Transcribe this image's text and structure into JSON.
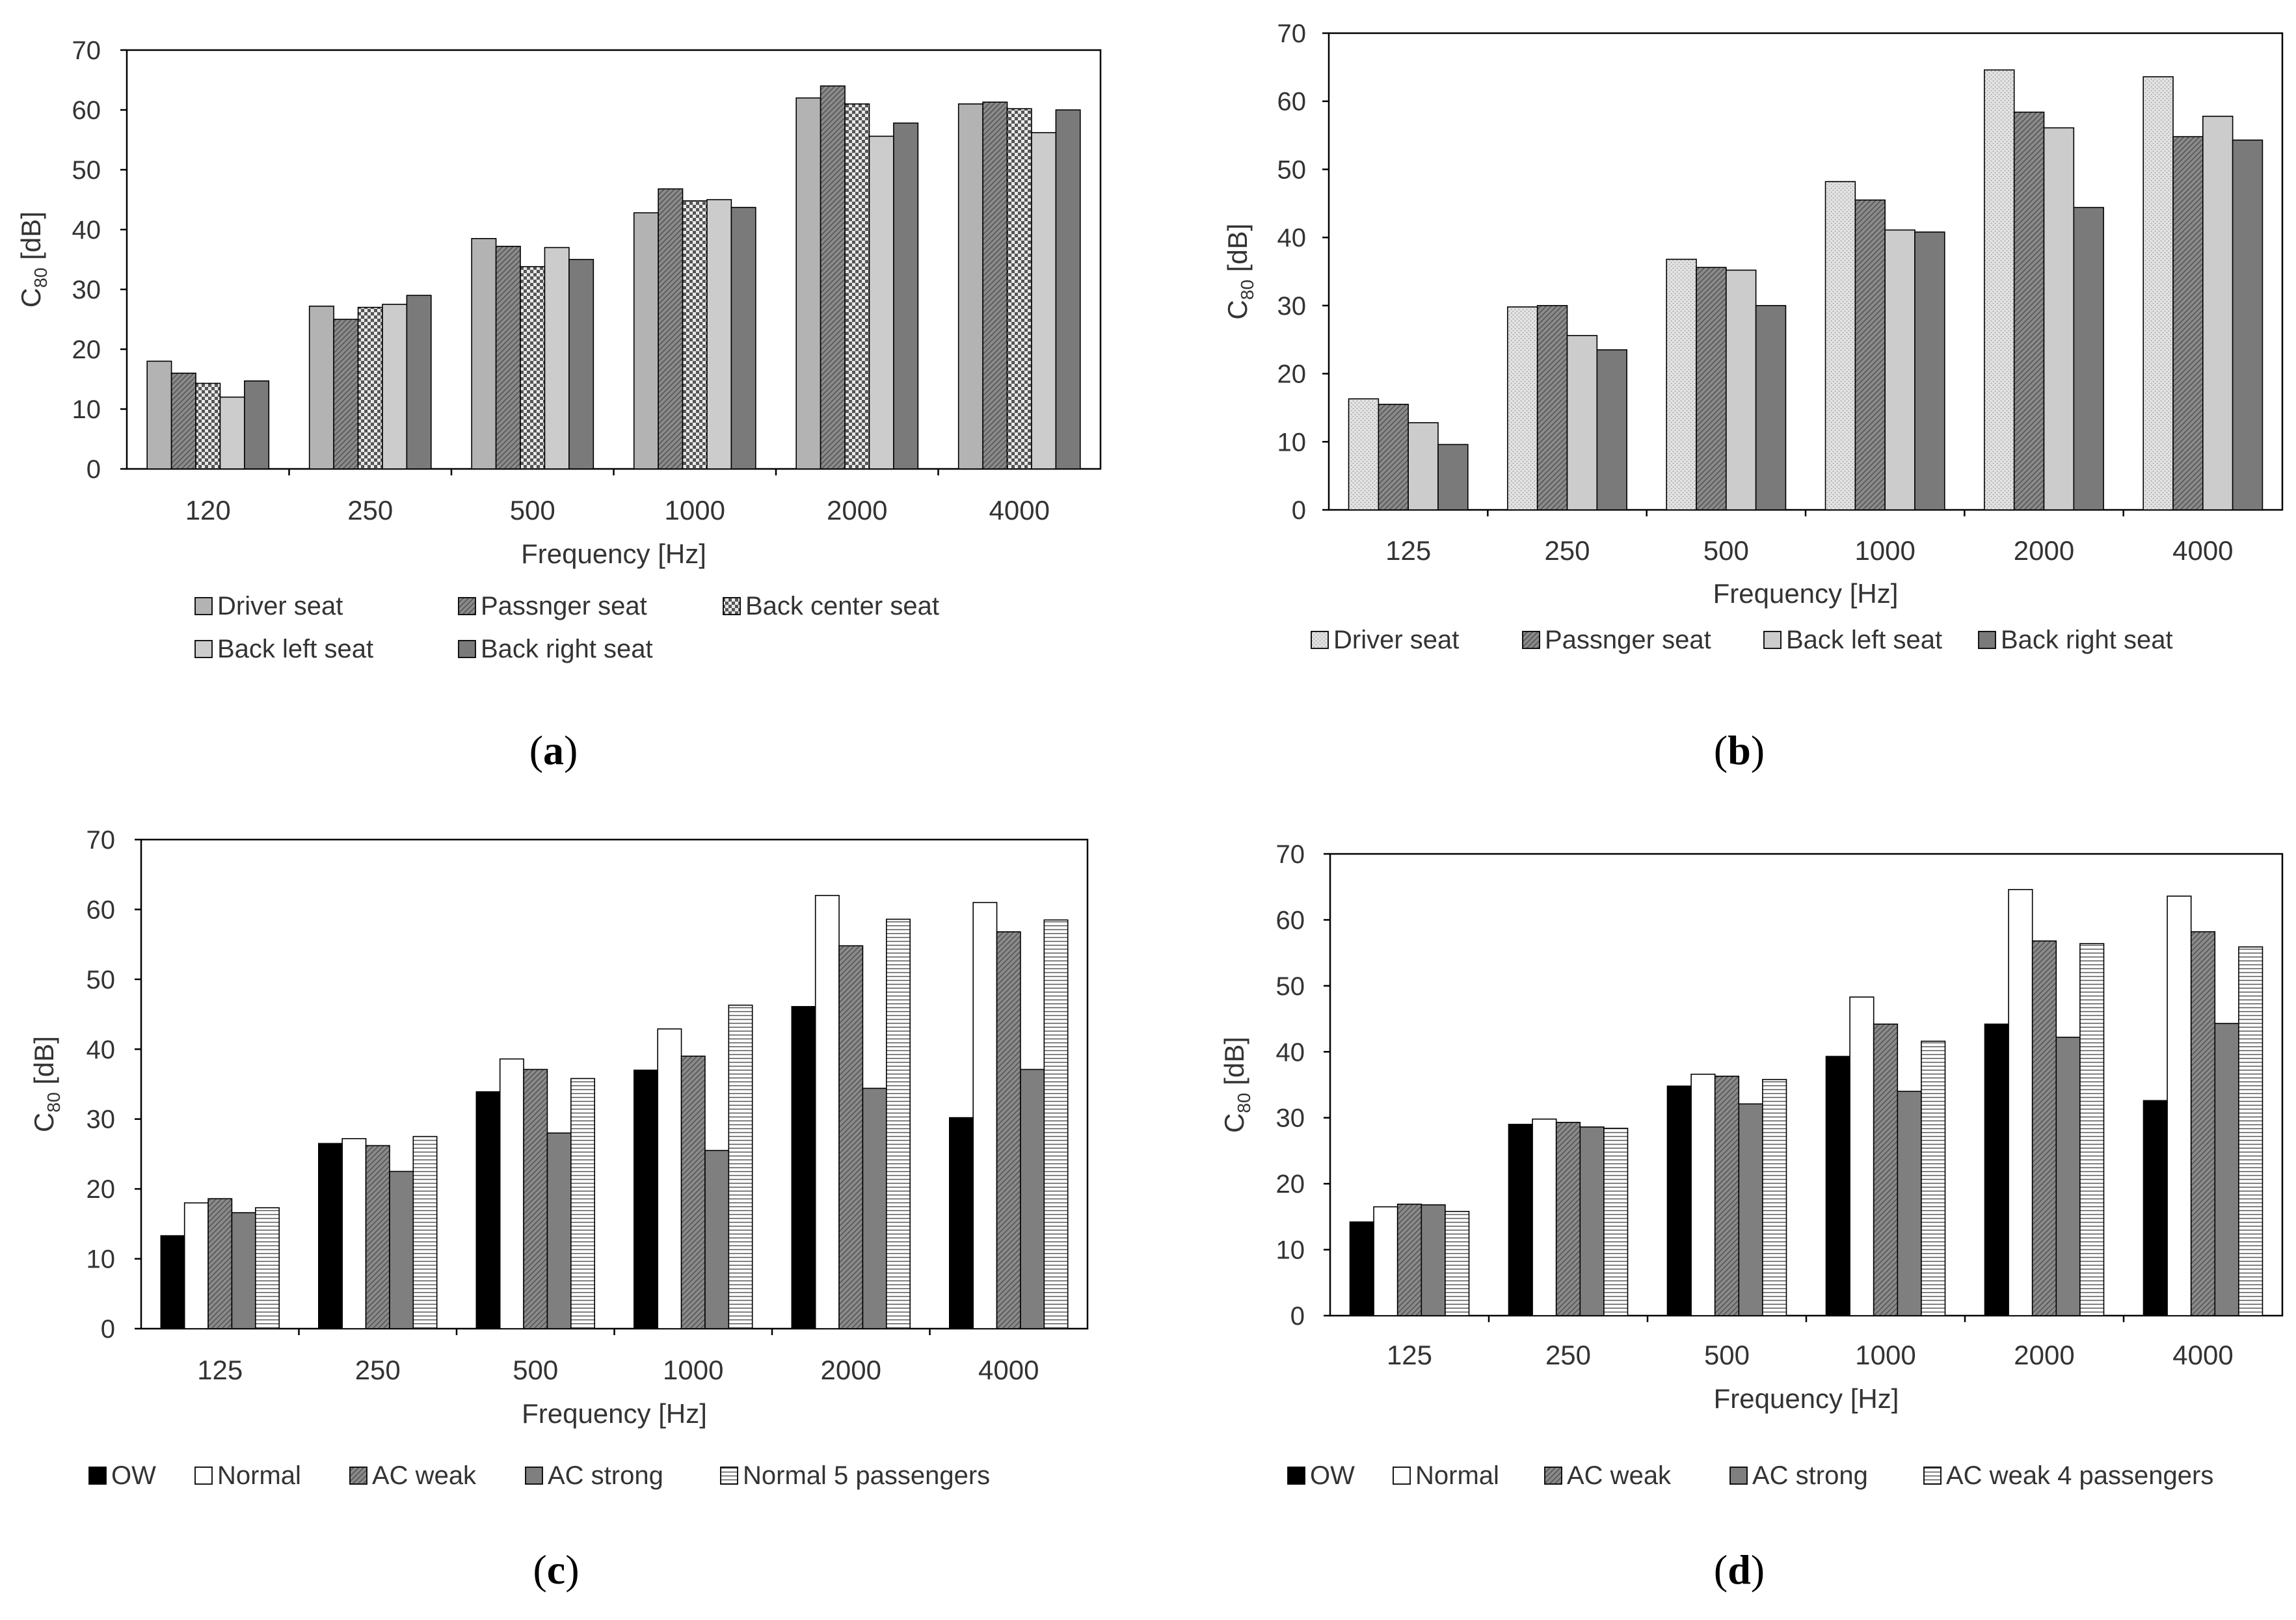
{
  "chart_data": [
    {
      "id": "a",
      "type": "bar",
      "caption_letter": "a",
      "categories": [
        "120",
        "250",
        "500",
        "1000",
        "2000",
        "4000"
      ],
      "xlabel": "Frequency [Hz]",
      "ylabel_main": "C",
      "ylabel_sub": "80",
      "ylabel_unit": " [dB]",
      "ylim": [
        0,
        70
      ],
      "yticks": [
        "0",
        "10",
        "20",
        "30",
        "40",
        "50",
        "60",
        "70"
      ],
      "legend_position": "bottom",
      "series": [
        {
          "name": "Driver seat",
          "values": [
            18,
            27.2,
            38.5,
            42.8,
            62,
            61
          ],
          "fill": "#b3b3b3",
          "pattern": "solid"
        },
        {
          "name": "Passnger seat",
          "values": [
            16,
            25,
            37.2,
            46.8,
            64,
            61.3
          ],
          "fill": "#7f7f7f",
          "pattern": "hatch"
        },
        {
          "name": "Back center seat",
          "values": [
            14.3,
            27,
            33.8,
            44.8,
            61,
            60.2
          ],
          "fill": "#cfcfcf",
          "pattern": "check"
        },
        {
          "name": "Back left seat",
          "values": [
            12,
            27.5,
            37,
            45,
            55.6,
            56.2
          ],
          "fill": "#cccccc",
          "pattern": "solid"
        },
        {
          "name": "Back right seat",
          "values": [
            14.7,
            29,
            35,
            43.7,
            57.8,
            60
          ],
          "fill": "#7a7a7a",
          "pattern": "solid"
        }
      ]
    },
    {
      "id": "b",
      "type": "bar",
      "caption_letter": "b",
      "categories": [
        "125",
        "250",
        "500",
        "1000",
        "2000",
        "4000"
      ],
      "xlabel": "Frequency [Hz]",
      "ylabel_main": "C",
      "ylabel_sub": "80",
      "ylabel_unit": " [dB]",
      "ylim": [
        0,
        70
      ],
      "yticks": [
        "0",
        "10",
        "20",
        "30",
        "40",
        "50",
        "60",
        "70"
      ],
      "legend_position": "bottom",
      "series": [
        {
          "name": "Driver seat",
          "values": [
            16.3,
            29.8,
            36.8,
            48.2,
            64.6,
            63.6
          ],
          "fill": "#d8d8d8",
          "pattern": "dots"
        },
        {
          "name": "Passnger seat",
          "values": [
            15.5,
            30,
            35.6,
            45.5,
            58.4,
            54.8
          ],
          "fill": "#7f7f7f",
          "pattern": "hatch"
        },
        {
          "name": "Back left seat",
          "values": [
            12.8,
            25.6,
            35.2,
            41.1,
            56.1,
            57.8
          ],
          "fill": "#cccccc",
          "pattern": "solid"
        },
        {
          "name": "Back right seat",
          "values": [
            9.6,
            23.5,
            30,
            40.8,
            44.4,
            54.3
          ],
          "fill": "#7a7a7a",
          "pattern": "solid"
        }
      ]
    },
    {
      "id": "c",
      "type": "bar",
      "caption_letter": "c",
      "categories": [
        "125",
        "250",
        "500",
        "1000",
        "2000",
        "4000"
      ],
      "xlabel": "Frequency [Hz]",
      "ylabel_main": "C",
      "ylabel_sub": "80",
      "ylabel_unit": " [dB]",
      "ylim": [
        0,
        70
      ],
      "yticks": [
        "0",
        "10",
        "20",
        "30",
        "40",
        "50",
        "60",
        "70"
      ],
      "legend_position": "bottom",
      "series": [
        {
          "name": "OW",
          "values": [
            13.3,
            26.5,
            33.9,
            37,
            46.1,
            30.2
          ],
          "fill": "#000000",
          "pattern": "solid"
        },
        {
          "name": "Normal",
          "values": [
            18,
            27.2,
            38.6,
            42.9,
            62,
            61
          ],
          "fill": "#ffffff",
          "pattern": "solid"
        },
        {
          "name": "AC weak",
          "values": [
            18.6,
            26.2,
            37.1,
            39,
            54.8,
            56.8
          ],
          "fill": "#858585",
          "pattern": "hatch"
        },
        {
          "name": "AC strong",
          "values": [
            16.6,
            22.5,
            28,
            25.5,
            34.4,
            37.1
          ],
          "fill": "#7f7f7f",
          "pattern": "solid"
        },
        {
          "name": "Normal 5 passengers",
          "values": [
            17.3,
            27.5,
            35.8,
            46.3,
            58.6,
            58.5
          ],
          "fill": "#ffffff",
          "pattern": "hlines"
        }
      ]
    },
    {
      "id": "d",
      "type": "bar",
      "caption_letter": "d",
      "categories": [
        "125",
        "250",
        "500",
        "1000",
        "2000",
        "4000"
      ],
      "xlabel": "Frequency [Hz]",
      "ylabel_main": "C",
      "ylabel_sub": "80",
      "ylabel_unit": " [dB]",
      "ylim": [
        0,
        70
      ],
      "yticks": [
        "0",
        "10",
        "20",
        "30",
        "40",
        "50",
        "60",
        "70"
      ],
      "legend_position": "bottom",
      "series": [
        {
          "name": "OW",
          "values": [
            14.2,
            29,
            34.8,
            39.3,
            44.2,
            32.6
          ],
          "fill": "#000000",
          "pattern": "solid"
        },
        {
          "name": "Normal",
          "values": [
            16.5,
            29.8,
            36.6,
            48.3,
            64.6,
            63.6
          ],
          "fill": "#ffffff",
          "pattern": "solid"
        },
        {
          "name": "AC weak",
          "values": [
            16.9,
            29.3,
            36.3,
            44.2,
            56.8,
            58.2
          ],
          "fill": "#858585",
          "pattern": "hatch"
        },
        {
          "name": "AC strong",
          "values": [
            16.8,
            28.6,
            32.1,
            34,
            42.2,
            44.3
          ],
          "fill": "#7f7f7f",
          "pattern": "solid"
        },
        {
          "name": "AC weak 4 passengers",
          "values": [
            15.8,
            28.4,
            35.8,
            41.6,
            56.4,
            55.9
          ],
          "fill": "#ffffff",
          "pattern": "hlines"
        }
      ]
    }
  ]
}
